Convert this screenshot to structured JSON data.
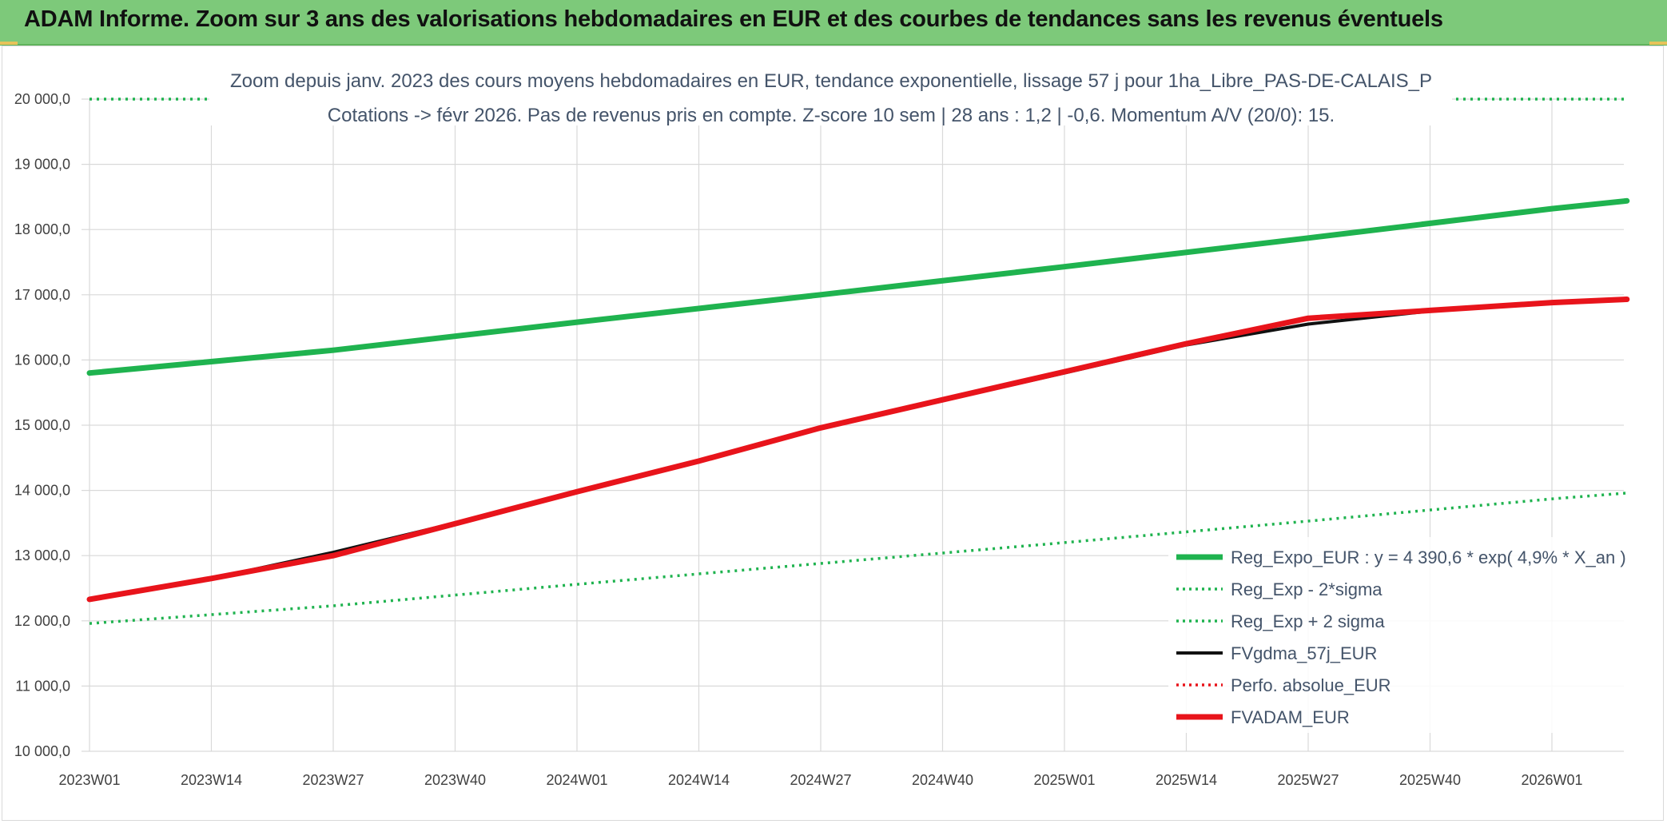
{
  "header": {
    "title": "ADAM Informe. Zoom sur 3 ans des valorisations hebdomadaires en EUR et des courbes de tendances sans les revenus éventuels"
  },
  "colors": {
    "banner": "#7dc97a",
    "trend_green": "#1fb34f",
    "dotted_green": "#1fb34f",
    "black_line": "#111111",
    "red_line": "#e8141b",
    "grid": "#d9d9d9"
  },
  "chart_data": {
    "type": "line",
    "title": "Zoom depuis janv. 2023 des cours moyens hebdomadaires en EUR, tendance exponentielle, lissage 57 j pour 1ha_Libre_PAS-DE-CALAIS_P",
    "subtitle": "Cotations -> févr 2026. Pas de revenus pris en compte. Z-score 10 sem | 28 ans : 1,2 | -0,6. Momentum A/V (20/0): 15.",
    "xlabel": "",
    "ylabel": "",
    "x_ticks": [
      "2023W01",
      "2023W14",
      "2023W27",
      "2023W40",
      "2024W01",
      "2024W14",
      "2024W27",
      "2024W40",
      "2025W01",
      "2025W14",
      "2025W27",
      "2025W40",
      "2026W01"
    ],
    "y_ticks": [
      "10 000,0",
      "11 000,0",
      "12 000,0",
      "13 000,0",
      "14 000,0",
      "15 000,0",
      "16 000,0",
      "17 000,0",
      "18 000,0",
      "19 000,0",
      "20 000,0"
    ],
    "ylim": [
      10000,
      20000
    ],
    "x_weeks_range": [
      0,
      164
    ],
    "grid": true,
    "legend_position": "bottom-right",
    "series": [
      {
        "name": "Reg_Expo_EUR : y = 4 390,6 * exp( 4,9% *  X_an )",
        "style": "solid-thick",
        "color": "#1fb34f",
        "points": [
          [
            0,
            15800
          ],
          [
            26,
            16150
          ],
          [
            52,
            16580
          ],
          [
            78,
            17000
          ],
          [
            104,
            17430
          ],
          [
            130,
            17870
          ],
          [
            156,
            18320
          ],
          [
            164,
            18440
          ]
        ]
      },
      {
        "name": "Reg_Exp - 2*sigma",
        "style": "dotted",
        "color": "#1fb34f",
        "points": [
          [
            0,
            11960
          ],
          [
            26,
            12230
          ],
          [
            52,
            12560
          ],
          [
            78,
            12880
          ],
          [
            104,
            13200
          ],
          [
            130,
            13530
          ],
          [
            156,
            13870
          ],
          [
            164,
            13960
          ]
        ]
      },
      {
        "name": "Reg_Exp + 2 sigma",
        "style": "dotted",
        "color": "#1fb34f",
        "points": [
          [
            0,
            20000
          ],
          [
            164,
            20000
          ]
        ]
      },
      {
        "name": "FVgdma_57j_EUR",
        "style": "solid-thin",
        "color": "#111111",
        "points": [
          [
            0,
            12330
          ],
          [
            13,
            12650
          ],
          [
            26,
            13050
          ],
          [
            39,
            13500
          ],
          [
            52,
            13980
          ],
          [
            65,
            14450
          ],
          [
            78,
            14950
          ],
          [
            91,
            15380
          ],
          [
            104,
            15800
          ],
          [
            117,
            16230
          ],
          [
            130,
            16550
          ],
          [
            143,
            16750
          ],
          [
            156,
            16870
          ],
          [
            164,
            16920
          ]
        ]
      },
      {
        "name": "Perfo. absolue_EUR",
        "style": "dotted",
        "color": "#e8141b",
        "points": []
      },
      {
        "name": "FVADAM_EUR",
        "style": "solid-thick",
        "color": "#e8141b",
        "points": [
          [
            0,
            12330
          ],
          [
            13,
            12650
          ],
          [
            26,
            13000
          ],
          [
            39,
            13490
          ],
          [
            52,
            13980
          ],
          [
            65,
            14450
          ],
          [
            78,
            14960
          ],
          [
            91,
            15390
          ],
          [
            104,
            15820
          ],
          [
            117,
            16250
          ],
          [
            130,
            16640
          ],
          [
            143,
            16760
          ],
          [
            156,
            16880
          ],
          [
            164,
            16930
          ]
        ]
      }
    ]
  }
}
